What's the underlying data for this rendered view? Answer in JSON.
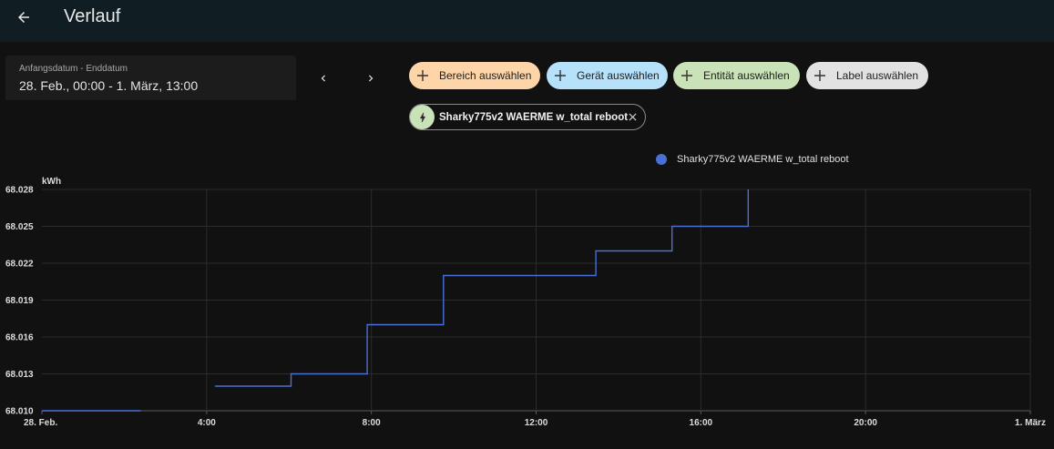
{
  "header": {
    "title": "Verlauf",
    "back_icon": "arrow-left-icon"
  },
  "date_range": {
    "label": "Anfangsdatum - Enddatum",
    "value": "28. Feb., 00:00 - 1. März, 13:00"
  },
  "filters": [
    {
      "label": "Bereich auswählen",
      "color": "#fdd5a8"
    },
    {
      "label": "Gerät auswählen",
      "color": "#b6e1fa"
    },
    {
      "label": "Entität auswählen",
      "color": "#c9e2b8"
    },
    {
      "label": "Label auswählen",
      "color": "#e2e2e2"
    }
  ],
  "selected_entity": {
    "label": "Sharky775v2 WAERME w_total reboot",
    "icon": "lightning-icon"
  },
  "colors": {
    "series": "#4a6fd6",
    "background": "#111111",
    "topbar": "#101e24"
  },
  "chart_data": {
    "type": "line",
    "step": true,
    "ylabel": "kWh",
    "ylim": [
      68.01,
      68.028
    ],
    "y_ticks": [
      "68.028",
      "68.025",
      "68.022",
      "68.019",
      "68.016",
      "68.013",
      "68.010"
    ],
    "x_ticks": [
      "28. Feb.",
      "4:00",
      "8:00",
      "12:00",
      "16:00",
      "20:00",
      "1. März"
    ],
    "xlim_hours": [
      0,
      24
    ],
    "grid": true,
    "legend_position": "top",
    "series": [
      {
        "name": "Sharky775v2 WAERME w_total reboot",
        "segments": [
          [
            [
              0.0,
              68.01
            ],
            [
              2.4,
              68.01
            ]
          ],
          [
            [
              4.2,
              68.012
            ],
            [
              6.05,
              68.012
            ],
            [
              6.05,
              68.013
            ],
            [
              7.9,
              68.013
            ],
            [
              7.9,
              68.017
            ],
            [
              9.75,
              68.017
            ],
            [
              9.75,
              68.021
            ],
            [
              13.45,
              68.021
            ],
            [
              13.45,
              68.023
            ],
            [
              15.3,
              68.023
            ],
            [
              15.3,
              68.025
            ],
            [
              17.15,
              68.025
            ],
            [
              17.15,
              68.028
            ]
          ]
        ]
      }
    ]
  }
}
